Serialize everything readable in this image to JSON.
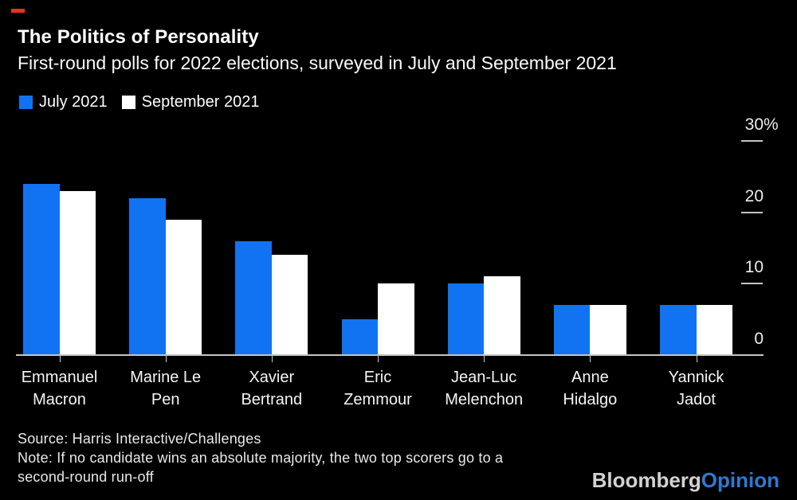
{
  "colors": {
    "background": "#000000",
    "bar_july": "#1173f2",
    "bar_september": "#ffffff",
    "axis": "#c4c4c4",
    "red_accent": "#e53126",
    "logo_bloomberg": "#d2d2d2",
    "logo_opinion": "#2f79d0"
  },
  "chart_data": {
    "type": "bar",
    "title": "The Politics of Personality",
    "subtitle": "First-round polls for 2022 elections, surveyed in July and September 2021",
    "xlabel": "",
    "ylabel": "",
    "unit": "%",
    "ylim": [
      0,
      30
    ],
    "grid": false,
    "legend_position": "top-left",
    "categories": [
      "Emmanuel Macron",
      "Marine Le Pen",
      "Xavier Bertrand",
      "Eric Zemmour",
      "Jean-Luc Melenchon",
      "Anne Hidalgo",
      "Yannick Jadot"
    ],
    "category_label_lines": [
      [
        "Emmanuel",
        "Macron"
      ],
      [
        "Marine Le",
        "Pen"
      ],
      [
        "Xavier",
        "Bertrand"
      ],
      [
        "Eric",
        "Zemmour"
      ],
      [
        "Jean-Luc",
        "Melenchon"
      ],
      [
        "Anne",
        "Hidalgo"
      ],
      [
        "Yannick",
        "Jadot"
      ]
    ],
    "series": [
      {
        "name": "July 2021",
        "color": "#1173f2",
        "values": [
          24,
          22,
          16,
          5,
          10,
          7,
          7
        ]
      },
      {
        "name": "September 2021",
        "color": "#ffffff",
        "values": [
          23,
          19,
          14,
          10,
          11,
          7,
          7
        ]
      }
    ],
    "yticks": [
      {
        "label": "30%",
        "value": 30
      },
      {
        "label": "20",
        "value": 20
      },
      {
        "label": "10",
        "value": 10
      },
      {
        "label": "0",
        "value": 0
      }
    ]
  },
  "footer": {
    "source": "Source: Harris Interactive/Challenges",
    "note_lines": [
      "Note: If no candidate wins an absolute majority, the two top scorers go to a",
      "second-round run-off"
    ]
  },
  "branding": {
    "bloomberg": "Bloomberg",
    "opinion": "Opinion"
  }
}
